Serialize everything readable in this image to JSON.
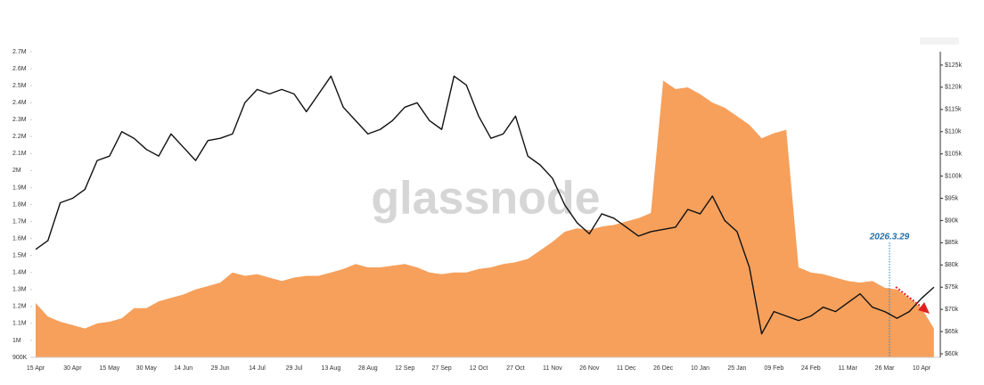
{
  "chart_data": {
    "type": "combo",
    "watermark": "glassnode",
    "annotation": "2026.3.29",
    "categories": [
      "15 Apr",
      null,
      null,
      "30 Apr",
      null,
      null,
      "15 May",
      null,
      null,
      "30 May",
      null,
      null,
      "14 Jun",
      null,
      null,
      "29 Jun",
      null,
      null,
      "14 Jul",
      null,
      null,
      "29 Jul",
      null,
      null,
      "13 Aug",
      null,
      null,
      "28 Aug",
      null,
      null,
      "12 Sep",
      null,
      null,
      "27 Sep",
      null,
      null,
      "12 Oct",
      null,
      null,
      "27 Oct",
      null,
      null,
      "11 Nov",
      null,
      null,
      "26 Nov",
      null,
      null,
      "11 Dec",
      null,
      null,
      "26 Dec",
      null,
      null,
      "10 Jan",
      null,
      null,
      "25 Jan",
      null,
      null,
      "09 Feb",
      null,
      null,
      "24 Feb",
      null,
      null,
      "11 Mar",
      null,
      null,
      "26 Mar",
      null,
      null,
      "10 Apr",
      null
    ],
    "series": [
      {
        "type": "area",
        "color": "#f6a05c",
        "axis": "y",
        "values": [
          1220000,
          1140000,
          1110000,
          1090000,
          1070000,
          1100000,
          1110000,
          1130000,
          1190000,
          1190000,
          1230000,
          1250000,
          1270000,
          1300000,
          1320000,
          1340000,
          1400000,
          1380000,
          1390000,
          1370000,
          1350000,
          1370000,
          1380000,
          1380000,
          1400000,
          1420000,
          1450000,
          1430000,
          1430000,
          1440000,
          1450000,
          1430000,
          1400000,
          1390000,
          1400000,
          1400000,
          1420000,
          1430000,
          1450000,
          1460000,
          1480000,
          1530000,
          1580000,
          1640000,
          1660000,
          1650000,
          1670000,
          1680000,
          1700000,
          1720000,
          1750000,
          2530000,
          2480000,
          2490000,
          2450000,
          2400000,
          2370000,
          2320000,
          2270000,
          2190000,
          2220000,
          2240000,
          1430000,
          1400000,
          1390000,
          1370000,
          1350000,
          1340000,
          1350000,
          1310000,
          1300000,
          1250000,
          1190000,
          1070000
        ]
      },
      {
        "type": "line",
        "color": "#111111",
        "axis": "y2",
        "values": [
          83500,
          85500,
          94000,
          95000,
          97000,
          103500,
          104500,
          110000,
          108500,
          106000,
          104500,
          109500,
          106500,
          103500,
          108000,
          108500,
          109500,
          116500,
          119500,
          118500,
          119500,
          118500,
          114500,
          118500,
          122500,
          115500,
          112500,
          109500,
          110500,
          112500,
          115500,
          116500,
          112500,
          110500,
          122500,
          120500,
          113500,
          108500,
          109500,
          113500,
          104500,
          102500,
          99500,
          93500,
          89500,
          87000,
          91500,
          90500,
          88500,
          86500,
          87500,
          88000,
          88500,
          92500,
          91500,
          95500,
          90000,
          87500,
          79500,
          64500,
          69500,
          68500,
          67500,
          68500,
          70500,
          69500,
          71500,
          73500,
          70500,
          69500,
          68000,
          69500,
          72500,
          75000
        ]
      }
    ],
    "ylim": [
      900000,
      2700000
    ],
    "yticks": [
      {
        "value": 900000,
        "label": "900K"
      },
      {
        "value": 1000000,
        "label": "1M"
      },
      {
        "value": 1100000,
        "label": "1.1M"
      },
      {
        "value": 1200000,
        "label": "1.2M"
      },
      {
        "value": 1300000,
        "label": "1.3M"
      },
      {
        "value": 1400000,
        "label": "1.4M"
      },
      {
        "value": 1500000,
        "label": "1.5M"
      },
      {
        "value": 1600000,
        "label": "1.6M"
      },
      {
        "value": 1700000,
        "label": "1.7M"
      },
      {
        "value": 1800000,
        "label": "1.8M"
      },
      {
        "value": 1900000,
        "label": "1.9M"
      },
      {
        "value": 2000000,
        "label": "2M"
      },
      {
        "value": 2100000,
        "label": "2.1M"
      },
      {
        "value": 2200000,
        "label": "2.2M"
      },
      {
        "value": 2300000,
        "label": "2.3M"
      },
      {
        "value": 2400000,
        "label": "2.4M"
      },
      {
        "value": 2500000,
        "label": "2.5M"
      },
      {
        "value": 2600000,
        "label": "2.6M"
      },
      {
        "value": 2700000,
        "label": "2.7M"
      }
    ],
    "y2lim": [
      59200,
      128000
    ],
    "y2ticks": [
      {
        "value": 60000,
        "label": "$60k"
      },
      {
        "value": 65000,
        "label": "$65k"
      },
      {
        "value": 70000,
        "label": "$70k"
      },
      {
        "value": 75000,
        "label": "$75k"
      },
      {
        "value": 80000,
        "label": "$80k"
      },
      {
        "value": 85000,
        "label": "$85k"
      },
      {
        "value": 90000,
        "label": "$90k"
      },
      {
        "value": 95000,
        "label": "$95k"
      },
      {
        "value": 100000,
        "label": "$100k"
      },
      {
        "value": 105000,
        "label": "$105k"
      },
      {
        "value": 110000,
        "label": "$110k"
      },
      {
        "value": 115000,
        "label": "$115k"
      },
      {
        "value": 120000,
        "label": "$120k"
      },
      {
        "value": 125000,
        "label": "$125k"
      }
    ]
  }
}
